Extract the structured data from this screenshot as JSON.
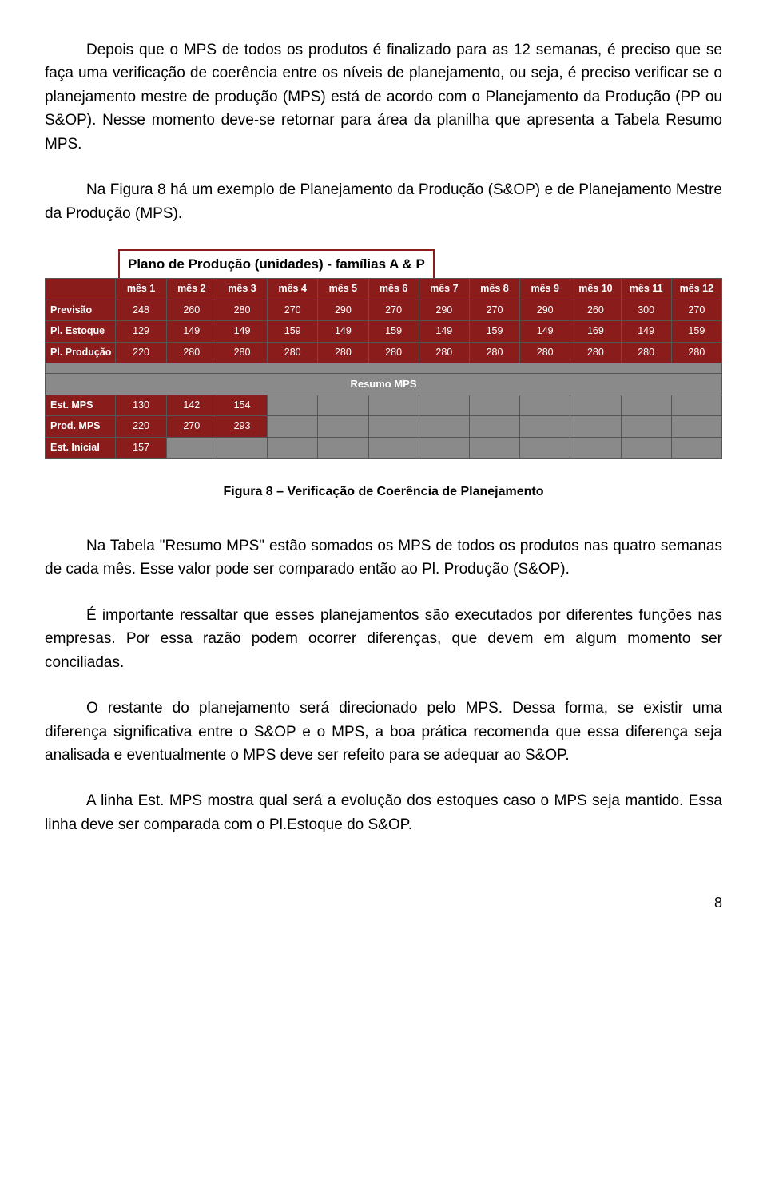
{
  "paragraphs": {
    "p1": "Depois que o MPS de todos os produtos é finalizado para as 12 semanas, é preciso que se faça uma verificação de coerência entre os níveis de planejamento, ou seja, é preciso verificar se o planejamento mestre de produção (MPS) está de acordo com o Planejamento da Produção (PP ou S&OP). Nesse momento deve-se retornar para área da planilha que apresenta a Tabela Resumo MPS.",
    "p2": "Na Figura 8 há um exemplo de Planejamento da Produção (S&OP) e de Planejamento Mestre da Produção (MPS).",
    "p3": "Na Tabela \"Resumo MPS\" estão somados os MPS de todos os produtos nas quatro semanas de cada mês. Esse valor pode ser comparado então ao Pl. Produção (S&OP).",
    "p4": "É importante ressaltar que esses planejamentos são executados por diferentes funções nas empresas. Por essa razão podem ocorrer diferenças, que devem em algum momento ser conciliadas.",
    "p5": "O restante do planejamento será direcionado pelo MPS. Dessa forma, se existir uma diferença significativa entre o S&OP e o MPS, a boa prática recomenda que essa diferença seja analisada e eventualmente o MPS deve ser refeito para se adequar ao S&OP.",
    "p6": "A linha Est. MPS mostra qual será a evolução dos estoques caso o MPS seja mantido. Essa linha deve ser comparada com o Pl.Estoque do S&OP."
  },
  "figure": {
    "title": "Plano de Produção (unidades) - famílias A & P",
    "caption": "Figura 8 – Verificação de Coerência de Planejamento",
    "months": [
      "mês 1",
      "mês 2",
      "mês 3",
      "mês 4",
      "mês 5",
      "mês 6",
      "mês 7",
      "mês 8",
      "mês 9",
      "mês 10",
      "mês 11",
      "mês 12"
    ],
    "rows_top": [
      {
        "label": "Previsão",
        "vals": [
          "248",
          "260",
          "280",
          "270",
          "290",
          "270",
          "290",
          "270",
          "290",
          "260",
          "300",
          "270"
        ]
      },
      {
        "label": "Pl. Estoque",
        "vals": [
          "129",
          "149",
          "149",
          "159",
          "149",
          "159",
          "149",
          "159",
          "149",
          "169",
          "149",
          "159"
        ]
      },
      {
        "label": "Pl. Produção",
        "vals": [
          "220",
          "280",
          "280",
          "280",
          "280",
          "280",
          "280",
          "280",
          "280",
          "280",
          "280",
          "280"
        ]
      }
    ],
    "sub_title": "Resumo MPS",
    "rows_bottom": [
      {
        "label": "Est. MPS",
        "vals": [
          "130",
          "142",
          "154",
          "",
          "",
          "",
          "",
          "",
          "",
          "",
          "",
          ""
        ]
      },
      {
        "label": "Prod. MPS",
        "vals": [
          "220",
          "270",
          "293",
          "",
          "",
          "",
          "",
          "",
          "",
          "",
          "",
          ""
        ]
      },
      {
        "label": "Est. Inicial",
        "vals": [
          "157",
          "",
          "",
          "",
          "",
          "",
          "",
          "",
          "",
          "",
          "",
          ""
        ]
      }
    ],
    "colors": {
      "header_bg": "#8a1c1c",
      "cell_bg": "#8a1c1c",
      "blank_bg": "#8a8a8a",
      "text": "#ffffff",
      "border": "#555555"
    }
  },
  "page_number": "8"
}
